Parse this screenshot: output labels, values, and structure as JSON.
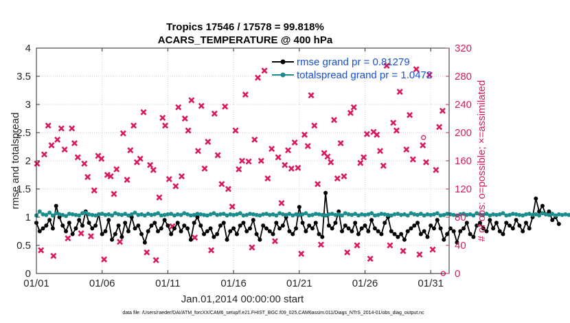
{
  "chart_data": {
    "type": "line",
    "title": "Tropics 17546 / 17578 = 99.818%",
    "subtitle": "ACARS_TEMPERATURE @ 400 hPa",
    "xlabel": "Jan.01,2014 00:00:00 start",
    "ylabel": "rmse and totalspread",
    "y2label": "# of obs: o=possible; ×=assimilated",
    "xlim": [
      0,
      31.4
    ],
    "ylim": [
      0,
      4
    ],
    "y2lim": [
      0,
      320
    ],
    "x_ticks": [
      {
        "x": 0,
        "label": "01/01"
      },
      {
        "x": 5,
        "label": "01/06"
      },
      {
        "x": 10,
        "label": "01/11"
      },
      {
        "x": 15,
        "label": "01/16"
      },
      {
        "x": 20,
        "label": "01/21"
      },
      {
        "x": 25,
        "label": "01/26"
      },
      {
        "x": 30,
        "label": "01/31"
      }
    ],
    "y_ticks": [
      {
        "v": 0,
        "label": "0"
      },
      {
        "v": 0.5,
        "label": "0.5"
      },
      {
        "v": 1,
        "label": "1"
      },
      {
        "v": 1.5,
        "label": "1.5"
      },
      {
        "v": 2,
        "label": "2"
      },
      {
        "v": 2.5,
        "label": "2.5"
      },
      {
        "v": 3,
        "label": "3"
      },
      {
        "v": 3.5,
        "label": "3.5"
      },
      {
        "v": 4,
        "label": "4"
      }
    ],
    "y2_ticks": [
      {
        "v": 0,
        "label": "0"
      },
      {
        "v": 40,
        "label": "40"
      },
      {
        "v": 80,
        "label": "80"
      },
      {
        "v": 120,
        "label": "120"
      },
      {
        "v": 160,
        "label": "160"
      },
      {
        "v": 200,
        "label": "200"
      },
      {
        "v": 240,
        "label": "240"
      },
      {
        "v": 280,
        "label": "280"
      },
      {
        "v": 320,
        "label": "320"
      }
    ],
    "grid": true,
    "legend_position": "top-right",
    "x_step_days": 0.25,
    "series": [
      {
        "name": "rmse grand pr = 0.81279",
        "color": "#000000",
        "axis": "left",
        "values": [
          0.9,
          0.75,
          0.8,
          0.85,
          0.95,
          0.8,
          1.2,
          1.0,
          0.85,
          0.75,
          0.9,
          0.7,
          0.8,
          0.95,
          0.85,
          1.1,
          0.9,
          0.8,
          0.85,
          1.05,
          0.7,
          0.75,
          0.95,
          0.6,
          0.7,
          0.85,
          0.65,
          0.9,
          0.75,
          1.0,
          0.8,
          0.85,
          0.7,
          0.55,
          0.75,
          0.85,
          0.9,
          0.75,
          0.8,
          0.95,
          0.85,
          0.7,
          0.8,
          0.9,
          0.75,
          0.85,
          0.8,
          0.6,
          0.9,
          1.0,
          0.85,
          0.7,
          0.75,
          0.8,
          0.65,
          0.7,
          0.85,
          0.9,
          0.6,
          0.75,
          0.8,
          0.7,
          0.85,
          0.9,
          0.75,
          0.8,
          0.95,
          0.7,
          0.6,
          0.85,
          0.8,
          0.75,
          0.7,
          0.9,
          0.8,
          0.85,
          1.0,
          0.75,
          0.7,
          0.8,
          1.18,
          0.9,
          0.75,
          0.85,
          0.8,
          0.9,
          0.7,
          0.65,
          1.43,
          0.85,
          0.8,
          0.9,
          1.1,
          0.75,
          0.85,
          0.8,
          0.75,
          0.9,
          0.7,
          0.8,
          0.85,
          0.75,
          0.95,
          0.8,
          0.75,
          0.7,
          0.9,
          1.0,
          0.75,
          0.7,
          0.65,
          0.7,
          0.6,
          0.75,
          0.8,
          0.85,
          0.9,
          0.7,
          0.75,
          0.65,
          0.85,
          0.8,
          0.95,
          0.8,
          0.6,
          0.7,
          0.8,
          0.75,
          0.55,
          0.75,
          0.8,
          0.9,
          0.7,
          0.65,
          0.85,
          0.9,
          0.8,
          0.75,
          0.95,
          0.8,
          0.9,
          0.75,
          0.7,
          0.9,
          0.85,
          0.8,
          0.95,
          0.85,
          0.75,
          0.9,
          0.8,
          1.0,
          1.33,
          1.1,
          1.2,
          1.05,
          1.1,
          0.95,
          1.0,
          0.88
        ]
      },
      {
        "name": "totalspread grand pr = 1.0472",
        "color": "#1a8c8c",
        "axis": "left",
        "values": [
          1.03,
          1.1,
          1.05,
          1.04,
          1.08,
          1.03,
          1.07,
          1.05,
          1.04,
          1.02,
          1.06,
          1.05,
          1.04,
          1.03,
          1.07,
          1.08,
          1.05,
          1.04,
          1.03,
          1.05,
          1.06,
          1.04,
          1.05,
          1.03,
          1.07,
          1.05,
          1.04,
          1.06,
          1.03,
          1.05,
          1.08,
          1.04,
          1.05,
          1.03,
          1.06,
          1.04,
          1.05,
          1.07,
          1.03,
          1.04,
          1.05,
          1.06,
          1.03,
          1.05,
          1.04,
          1.07,
          1.05,
          1.03,
          1.04,
          1.06,
          1.05,
          1.04,
          1.03,
          1.05,
          1.07,
          1.04,
          1.05,
          1.06,
          1.03,
          1.05,
          1.04,
          1.05,
          1.07,
          1.03,
          1.04,
          1.06,
          1.05,
          1.04,
          1.03,
          1.05,
          1.06,
          1.04,
          1.05,
          1.03,
          1.07,
          1.05,
          1.04,
          1.06,
          1.03,
          1.05,
          1.04,
          1.05,
          1.07,
          1.03,
          1.04,
          1.06,
          1.05,
          1.04,
          1.03,
          1.05,
          1.06,
          1.04,
          1.05,
          1.03,
          1.07,
          1.05,
          1.04,
          1.06,
          1.03,
          1.05,
          1.04,
          1.05,
          1.07,
          1.03,
          1.04,
          1.06,
          1.05,
          1.04,
          1.03,
          1.05,
          1.06,
          1.04,
          1.05,
          1.03,
          1.07,
          1.05,
          1.04,
          1.06,
          1.03,
          1.05,
          1.04,
          1.05,
          1.07,
          1.03,
          1.04,
          1.06,
          1.05,
          1.04,
          1.03,
          1.05,
          1.06,
          1.04,
          1.05,
          1.03,
          1.07,
          1.05,
          1.04,
          1.06,
          1.03,
          1.05,
          1.04,
          1.05,
          1.07,
          1.03,
          1.04,
          1.06,
          1.05,
          1.04,
          1.03,
          1.05,
          1.06,
          1.04,
          1.05,
          1.03,
          1.07,
          1.05,
          1.04,
          1.06,
          1.03,
          1.05,
          1.04,
          1.05,
          1.04,
          1.03,
          1.05
        ]
      }
    ],
    "obs_series": {
      "color": "#d81b60",
      "axis": "right",
      "assimilated": [
        [
          0.05,
          156
        ],
        [
          0.35,
          33
        ],
        [
          0.6,
          169
        ],
        [
          0.9,
          210
        ],
        [
          1.15,
          182
        ],
        [
          1.3,
          25
        ],
        [
          1.6,
          190
        ],
        [
          1.9,
          206
        ],
        [
          2.15,
          176
        ],
        [
          2.4,
          50
        ],
        [
          2.7,
          206
        ],
        [
          2.9,
          185
        ],
        [
          3.15,
          165
        ],
        [
          3.4,
          57
        ],
        [
          3.65,
          156
        ],
        [
          3.9,
          137
        ],
        [
          4.15,
          53
        ],
        [
          4.4,
          118
        ],
        [
          4.7,
          167
        ],
        [
          4.95,
          163
        ],
        [
          5.15,
          20
        ],
        [
          5.4,
          140
        ],
        [
          5.65,
          138
        ],
        [
          5.9,
          113
        ],
        [
          6.1,
          148
        ],
        [
          6.35,
          45
        ],
        [
          6.6,
          199
        ],
        [
          6.9,
          133
        ],
        [
          7.15,
          175
        ],
        [
          7.4,
          210
        ],
        [
          7.65,
          158
        ],
        [
          7.9,
          163
        ],
        [
          8.15,
          229
        ],
        [
          8.4,
          30
        ],
        [
          8.65,
          154
        ],
        [
          8.9,
          147
        ],
        [
          9.1,
          19
        ],
        [
          9.35,
          108
        ],
        [
          9.6,
          221
        ],
        [
          9.8,
          210
        ],
        [
          10.1,
          134
        ],
        [
          10.35,
          67
        ],
        [
          10.6,
          124
        ],
        [
          10.8,
          236
        ],
        [
          11.05,
          138
        ],
        [
          11.3,
          220
        ],
        [
          11.55,
          203
        ],
        [
          11.8,
          246
        ],
        [
          12.05,
          51
        ],
        [
          12.3,
          174
        ],
        [
          12.55,
          238
        ],
        [
          12.8,
          149
        ],
        [
          13.05,
          187
        ],
        [
          13.3,
          33
        ],
        [
          13.55,
          227
        ],
        [
          13.8,
          168
        ],
        [
          14.1,
          127
        ],
        [
          14.35,
          237
        ],
        [
          14.6,
          120
        ],
        [
          14.9,
          95
        ],
        [
          15.15,
          203
        ],
        [
          15.4,
          148
        ],
        [
          15.65,
          160
        ],
        [
          15.9,
          254
        ],
        [
          16.15,
          159
        ],
        [
          16.4,
          37
        ],
        [
          16.6,
          190
        ],
        [
          16.85,
          278
        ],
        [
          17.1,
          160
        ],
        [
          17.35,
          288
        ],
        [
          17.6,
          135
        ],
        [
          17.9,
          177
        ],
        [
          18.15,
          46
        ],
        [
          18.4,
          165
        ],
        [
          18.65,
          100
        ],
        [
          18.9,
          154
        ],
        [
          19.15,
          175
        ],
        [
          19.4,
          149
        ],
        [
          19.65,
          186
        ],
        [
          19.9,
          150
        ],
        [
          20.15,
          28
        ],
        [
          20.4,
          197
        ],
        [
          20.65,
          181
        ],
        [
          20.9,
          253
        ],
        [
          21.15,
          210
        ],
        [
          21.4,
          127
        ],
        [
          21.65,
          41
        ],
        [
          21.9,
          171
        ],
        [
          22.15,
          166
        ],
        [
          22.4,
          158
        ],
        [
          22.65,
          218
        ],
        [
          22.9,
          135
        ],
        [
          23.15,
          185
        ],
        [
          23.4,
          138
        ],
        [
          23.65,
          30
        ],
        [
          23.9,
          228
        ],
        [
          24.15,
          236
        ],
        [
          24.4,
          40
        ],
        [
          24.65,
          157
        ],
        [
          24.9,
          165
        ],
        [
          25.15,
          198
        ],
        [
          25.4,
          21
        ],
        [
          25.65,
          201
        ],
        [
          25.9,
          197
        ],
        [
          26.15,
          174
        ],
        [
          26.4,
          153
        ],
        [
          26.65,
          295
        ],
        [
          26.9,
          40
        ],
        [
          27.15,
          214
        ],
        [
          27.4,
          203
        ],
        [
          27.65,
          258
        ],
        [
          27.9,
          32
        ],
        [
          28.15,
          176
        ],
        [
          28.4,
          225
        ],
        [
          28.65,
          162
        ],
        [
          28.9,
          290
        ],
        [
          29.15,
          27
        ],
        [
          29.4,
          182
        ],
        [
          29.65,
          158
        ],
        [
          29.9,
          282
        ],
        [
          30.15,
          34
        ],
        [
          30.4,
          147
        ],
        [
          30.65,
          208
        ],
        [
          30.9,
          231
        ]
      ],
      "possible": [
        [
          29.45,
          193
        ],
        [
          30.95,
          0
        ]
      ]
    }
  },
  "footer": {
    "text": "data file: /Users/raeder/DAI/ATM_forcXX/CAM6_setup/f.e21.FHIST_BGC.f09_025.CAM6assim.011/Diags_NTrS_2014-01/obs_diag_output.nc"
  }
}
